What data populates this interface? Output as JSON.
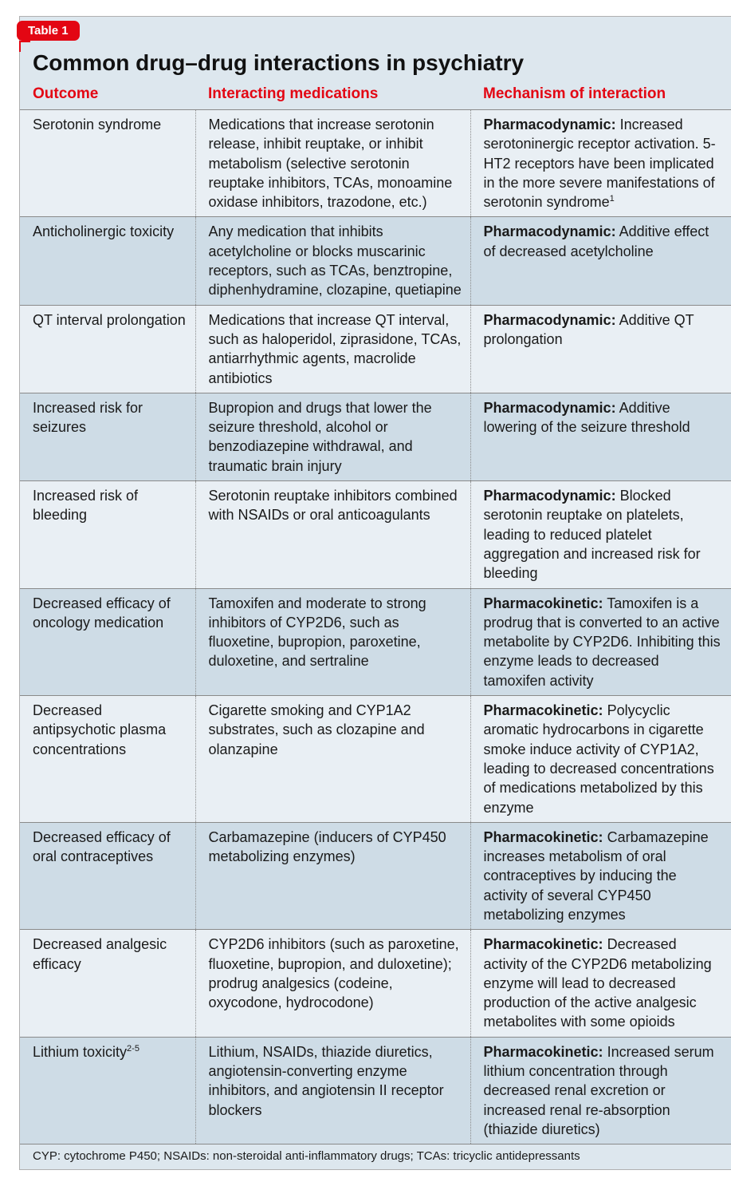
{
  "badge": "Table 1",
  "title": "Common drug–drug interactions in psychiatry",
  "columns": [
    "Outcome",
    "Interacting medications",
    "Mechanism of interaction"
  ],
  "rows": [
    {
      "outcome": "Serotonin syndrome",
      "sup": "",
      "interacting": "Medications that increase serotonin release, inhibit reuptake, or inhibit metabolism (selective serotonin reuptake inhibitors, TCAs, monoamine oxidase inhibitors, trazodone, etc.)",
      "mech_label": "Pharmacodynamic:",
      "mech_text": " Increased serotoninergic receptor activation. 5-HT2 receptors have been implicated in the more severe manifestations of serotonin syndrome",
      "mech_sup": "1",
      "shade": "light"
    },
    {
      "outcome": "Anticholinergic toxicity",
      "sup": "",
      "interacting": "Any medication that inhibits acetylcholine or blocks muscarinic receptors, such as TCAs, benztropine, diphenhydramine, clozapine, quetiapine",
      "mech_label": "Pharmacodynamic:",
      "mech_text": " Additive effect of decreased acetylcholine",
      "mech_sup": "",
      "shade": "dark"
    },
    {
      "outcome": "QT interval prolongation",
      "sup": "",
      "interacting": "Medications that increase QT interval, such as haloperidol, ziprasidone, TCAs, antiarrhythmic agents, macrolide antibiotics",
      "mech_label": "Pharmacodynamic:",
      "mech_text": " Additive QT prolongation",
      "mech_sup": "",
      "shade": "light"
    },
    {
      "outcome": "Increased risk for seizures",
      "sup": "",
      "interacting": "Bupropion and drugs that lower the seizure threshold, alcohol or benzodiazepine withdrawal, and traumatic brain injury",
      "mech_label": "Pharmacodynamic:",
      "mech_text": " Additive lowering of the seizure threshold",
      "mech_sup": "",
      "shade": "dark"
    },
    {
      "outcome": "Increased risk of bleeding",
      "sup": "",
      "interacting": "Serotonin reuptake inhibitors combined with NSAIDs or oral anticoagulants",
      "mech_label": "Pharmacodynamic:",
      "mech_text": " Blocked serotonin reuptake on platelets, leading to reduced platelet aggregation and increased risk for bleeding",
      "mech_sup": "",
      "shade": "light"
    },
    {
      "outcome": "Decreased efficacy of oncology medication",
      "sup": "",
      "interacting": "Tamoxifen and moderate to strong inhibitors of CYP2D6, such as fluoxetine, bupropion, paroxetine, duloxetine, and sertraline",
      "mech_label": "Pharmacokinetic:",
      "mech_text": " Tamoxifen is a prodrug that is converted to an active metabolite by CYP2D6. Inhibiting this enzyme leads to decreased tamoxifen activity",
      "mech_sup": "",
      "shade": "dark"
    },
    {
      "outcome": "Decreased antipsychotic plasma concentrations",
      "sup": "",
      "interacting": "Cigarette smoking and CYP1A2 substrates, such as clozapine and olanzapine",
      "mech_label": "Pharmacokinetic:",
      "mech_text": " Polycyclic aromatic hydrocarbons in cigarette smoke induce activity of CYP1A2, leading to decreased concentrations of medications metabolized by this enzyme",
      "mech_sup": "",
      "shade": "light"
    },
    {
      "outcome": "Decreased efficacy of oral contraceptives",
      "sup": "",
      "interacting": "Carbamazepine (inducers of CYP450 metabolizing enzymes)",
      "mech_label": "Pharmacokinetic:",
      "mech_text": " Carbamazepine increases metabolism of oral contraceptives by inducing the activity of several CYP450 metabolizing enzymes",
      "mech_sup": "",
      "shade": "dark"
    },
    {
      "outcome": "Decreased analgesic efficacy",
      "sup": "",
      "interacting": "CYP2D6 inhibitors (such as paroxetine, fluoxetine, bupropion, and duloxetine); prodrug analgesics (codeine, oxycodone, hydrocodone)",
      "mech_label": "Pharmacokinetic:",
      "mech_text": " Decreased activity of the CYP2D6 metabolizing enzyme will lead to decreased production of the active analgesic metabolites with some opioids",
      "mech_sup": "",
      "shade": "light"
    },
    {
      "outcome": "Lithium toxicity",
      "sup": "2-5",
      "interacting": "Lithium, NSAIDs, thiazide diuretics, angiotensin-converting enzyme inhibitors, and angiotensin II receptor blockers",
      "mech_label": "Pharmacokinetic:",
      "mech_text": " Increased serum lithium concentration through decreased renal excretion or increased renal re-absorption (thiazide diuretics)",
      "mech_sup": "",
      "shade": "dark"
    }
  ],
  "footnote": "CYP: cytochrome P450; NSAIDs: non-steroidal anti-inflammatory drugs; TCAs: tricyclic antidepressants",
  "colors": {
    "accent": "#e30613",
    "band_light": "#e9eff4",
    "band_dark": "#cedce6",
    "header_bg": "#dde7ee",
    "rule": "#8a8a8a"
  }
}
